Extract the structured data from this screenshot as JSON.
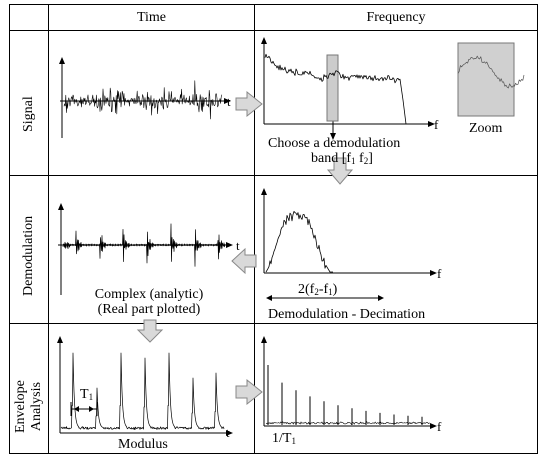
{
  "columns": [
    "Time",
    "Frequency"
  ],
  "rows": [
    "Signal",
    "Demodulation",
    "Envelope Analysis"
  ],
  "row3_lines": [
    "Envelope",
    "Analysis"
  ],
  "axis": {
    "t": "t",
    "f": "f"
  },
  "labels": {
    "zoom": "Zoom",
    "choose_band_1": "Choose a demodulation",
    "choose_band_2_a": "band [f",
    "choose_band_2_s1": "1",
    "choose_band_2_b": " f",
    "choose_band_2_s2": "2",
    "choose_band_2_c": "]",
    "bandwidth_a": "2(f",
    "bandwidth_s2": "2",
    "bandwidth_b": "-f",
    "bandwidth_s1": "1",
    "bandwidth_c": ")",
    "complex_1": "Complex (analytic)",
    "complex_2": "(Real part plotted)",
    "demod_decim": "Demodulation - Decimation",
    "period": "T",
    "period_sub": "1",
    "modulus": "Modulus",
    "inv_period": "1/T",
    "inv_period_sub": "1"
  },
  "colors": {
    "line": "#000000",
    "arrow_fill": "#d9d9d9",
    "band_fill": "#cccccc",
    "zoom_fill": "#d0d0d0"
  }
}
